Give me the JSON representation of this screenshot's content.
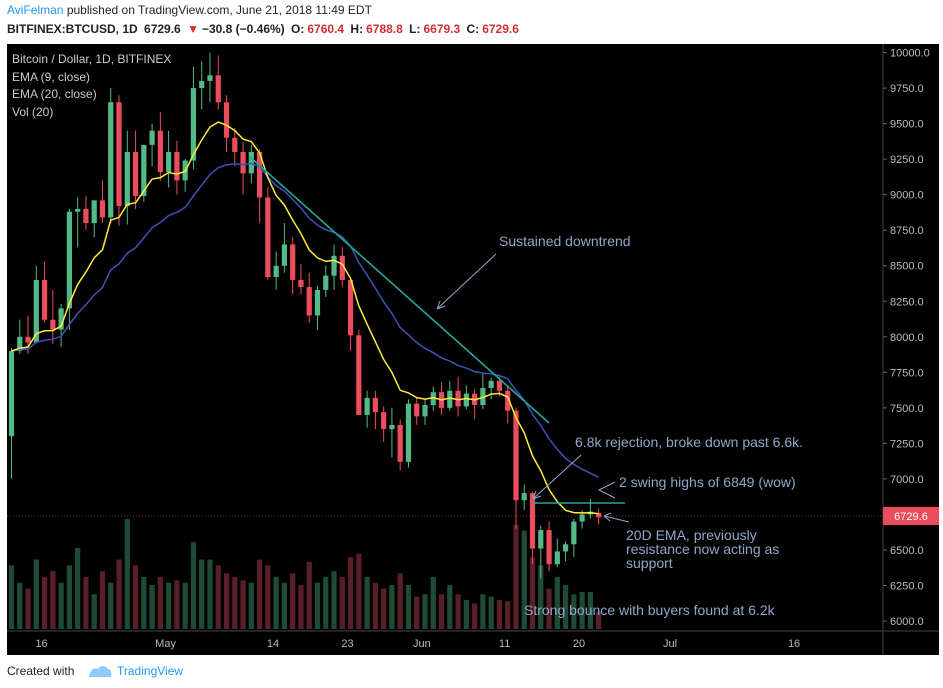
{
  "header": {
    "author": "AviFelman",
    "published": "published on TradingView.com, June 21, 2018 11:49 EDT",
    "symbol": "BITFINEX:BTCUSD, 1D",
    "last": "6729.6",
    "arrow": "▼",
    "change": "−30.8 (−0.46%)",
    "o_label": "O:",
    "o": "6760.4",
    "h_label": "H:",
    "h": "6788.8",
    "l_label": "L:",
    "l": "6679.3",
    "c_label": "C:",
    "c": "6729.6"
  },
  "legend": {
    "title": "Bitcoin / Dollar, 1D, BITFINEX",
    "ema9": "EMA (9, close)",
    "ema20": "EMA (20, close)",
    "vol": "Vol (20)"
  },
  "footer": {
    "created": "Created with",
    "brand": "TradingView"
  },
  "colors": {
    "background": "#000000",
    "up": "#53b987",
    "down": "#eb4d5c",
    "ema9": "#ffeb3b",
    "ema20": "#3f51b5",
    "trendline": "#26a69a",
    "annotation": "#8fa8c8",
    "axis_text": "#bbbbbb",
    "price_label_bg": "#eb4d5c"
  },
  "chart_data": {
    "type": "candlestick",
    "y_ticks": [
      "10000.0",
      "9750.0",
      "9500.0",
      "9250.0",
      "9000.0",
      "8750.0",
      "8500.0",
      "8250.0",
      "8000.0",
      "7750.0",
      "7500.0",
      "7250.0",
      "7000.0",
      "6750.0",
      "6500.0",
      "6250.0",
      "6000.0"
    ],
    "ylim": [
      5930,
      10060
    ],
    "x_ticks": [
      {
        "label": "16",
        "i": 0
      },
      {
        "label": "May",
        "i": 15
      },
      {
        "label": "14",
        "i": 28
      },
      {
        "label": "23",
        "i": 37
      },
      {
        "label": "Jun",
        "i": 46
      },
      {
        "label": "11",
        "i": 56
      },
      {
        "label": "20",
        "i": 65
      },
      {
        "label": "Jul",
        "i": 76
      },
      {
        "label": "16",
        "i": 91
      }
    ],
    "last_price": "6729.6",
    "candles": [
      [
        7300,
        7920,
        7000,
        7900
      ],
      [
        7900,
        8120,
        7880,
        8000
      ],
      [
        8000,
        8150,
        7880,
        7960
      ],
      [
        7960,
        8500,
        7960,
        8400
      ],
      [
        8400,
        8530,
        8100,
        8120
      ],
      [
        8120,
        8330,
        7950,
        8050
      ],
      [
        8050,
        8230,
        7930,
        8200
      ],
      [
        8200,
        8900,
        8050,
        8880
      ],
      [
        8880,
        8980,
        8630,
        8900
      ],
      [
        8900,
        8990,
        8750,
        8800
      ],
      [
        8800,
        8960,
        8700,
        8960
      ],
      [
        8960,
        9100,
        8800,
        8840
      ],
      [
        8840,
        9750,
        8800,
        9650
      ],
      [
        9650,
        9700,
        8780,
        8920
      ],
      [
        8920,
        9450,
        8790,
        9300
      ],
      [
        9300,
        9450,
        8900,
        8990
      ],
      [
        8990,
        9350,
        8950,
        9350
      ],
      [
        9350,
        9500,
        9200,
        9450
      ],
      [
        9450,
        9580,
        9100,
        9160
      ],
      [
        9160,
        9450,
        9050,
        9300
      ],
      [
        9300,
        9380,
        9000,
        9100
      ],
      [
        9100,
        9250,
        9020,
        9240
      ],
      [
        9240,
        9900,
        9180,
        9750
      ],
      [
        9750,
        9940,
        9600,
        9800
      ],
      [
        9800,
        10000,
        9650,
        9840
      ],
      [
        9840,
        9980,
        9600,
        9650
      ],
      [
        9650,
        9700,
        9300,
        9400
      ],
      [
        9400,
        9470,
        9200,
        9300
      ],
      [
        9300,
        9370,
        9000,
        9150
      ],
      [
        9150,
        9350,
        9080,
        9300
      ],
      [
        9300,
        9320,
        8800,
        8980
      ],
      [
        8980,
        9050,
        8400,
        8420
      ],
      [
        8420,
        8600,
        8330,
        8500
      ],
      [
        8500,
        8800,
        8450,
        8650
      ],
      [
        8650,
        8700,
        8300,
        8400
      ],
      [
        8400,
        8510,
        8300,
        8350
      ],
      [
        8350,
        8450,
        8100,
        8150
      ],
      [
        8150,
        8360,
        8050,
        8330
      ],
      [
        8330,
        8500,
        8280,
        8430
      ],
      [
        8430,
        8650,
        8330,
        8570
      ],
      [
        8570,
        8630,
        8350,
        8400
      ],
      [
        8400,
        8420,
        7900,
        8010
      ],
      [
        8010,
        8050,
        7450,
        7450
      ],
      [
        7450,
        7620,
        7360,
        7570
      ],
      [
        7570,
        7620,
        7350,
        7470
      ],
      [
        7470,
        7510,
        7260,
        7350
      ],
      [
        7350,
        7500,
        7150,
        7380
      ],
      [
        7380,
        7420,
        7060,
        7120
      ],
      [
        7120,
        7560,
        7080,
        7530
      ],
      [
        7530,
        7580,
        7380,
        7440
      ],
      [
        7440,
        7560,
        7380,
        7520
      ],
      [
        7520,
        7650,
        7480,
        7610
      ],
      [
        7610,
        7680,
        7450,
        7500
      ],
      [
        7500,
        7690,
        7480,
        7620
      ],
      [
        7620,
        7720,
        7440,
        7510
      ],
      [
        7510,
        7660,
        7490,
        7600
      ],
      [
        7600,
        7630,
        7420,
        7520
      ],
      [
        7520,
        7740,
        7490,
        7640
      ],
      [
        7640,
        7710,
        7560,
        7690
      ],
      [
        7690,
        7720,
        7580,
        7620
      ],
      [
        7620,
        7650,
        7390,
        7480
      ],
      [
        7480,
        7500,
        6650,
        6850
      ],
      [
        6850,
        6960,
        6780,
        6900
      ],
      [
        6900,
        6910,
        6400,
        6510
      ],
      [
        6510,
        6670,
        6300,
        6640
      ],
      [
        6640,
        6700,
        6350,
        6400
      ],
      [
        6400,
        6580,
        6380,
        6490
      ],
      [
        6490,
        6560,
        6420,
        6540
      ],
      [
        6540,
        6720,
        6450,
        6700
      ],
      [
        6700,
        6780,
        6650,
        6750
      ],
      [
        6750,
        6860,
        6720,
        6770
      ],
      [
        6760,
        6790,
        6680,
        6730
      ]
    ],
    "volume": [
      55,
      40,
      35,
      60,
      45,
      50,
      40,
      55,
      70,
      45,
      30,
      50,
      40,
      60,
      95,
      55,
      45,
      38,
      45,
      40,
      42,
      40,
      75,
      60,
      60,
      55,
      48,
      45,
      42,
      40,
      60,
      55,
      45,
      40,
      48,
      38,
      58,
      40,
      45,
      50,
      45,
      62,
      65,
      45,
      40,
      35,
      38,
      48,
      38,
      28,
      30,
      45,
      30,
      38,
      30,
      25,
      22,
      30,
      28,
      25,
      24,
      90,
      85,
      62,
      55,
      35,
      45,
      38,
      30,
      32,
      32,
      15
    ]
  },
  "annotations": [
    {
      "name": "annotation-downtrend",
      "text": "Sustained downtrend"
    },
    {
      "name": "annotation-rejection",
      "text": "6.8k rejection, broke down past 6.6k."
    },
    {
      "name": "annotation-swing-highs",
      "text": "2 swing highs of 6849 (wow)"
    },
    {
      "name": "annotation-ema20-line1",
      "text": "20D EMA, previously"
    },
    {
      "name": "annotation-ema20-line2",
      "text": "resistance now acting as"
    },
    {
      "name": "annotation-ema20-line3",
      "text": "support"
    },
    {
      "name": "annotation-bounce",
      "text": "Strong bounce with buyers found at 6.2k"
    }
  ]
}
